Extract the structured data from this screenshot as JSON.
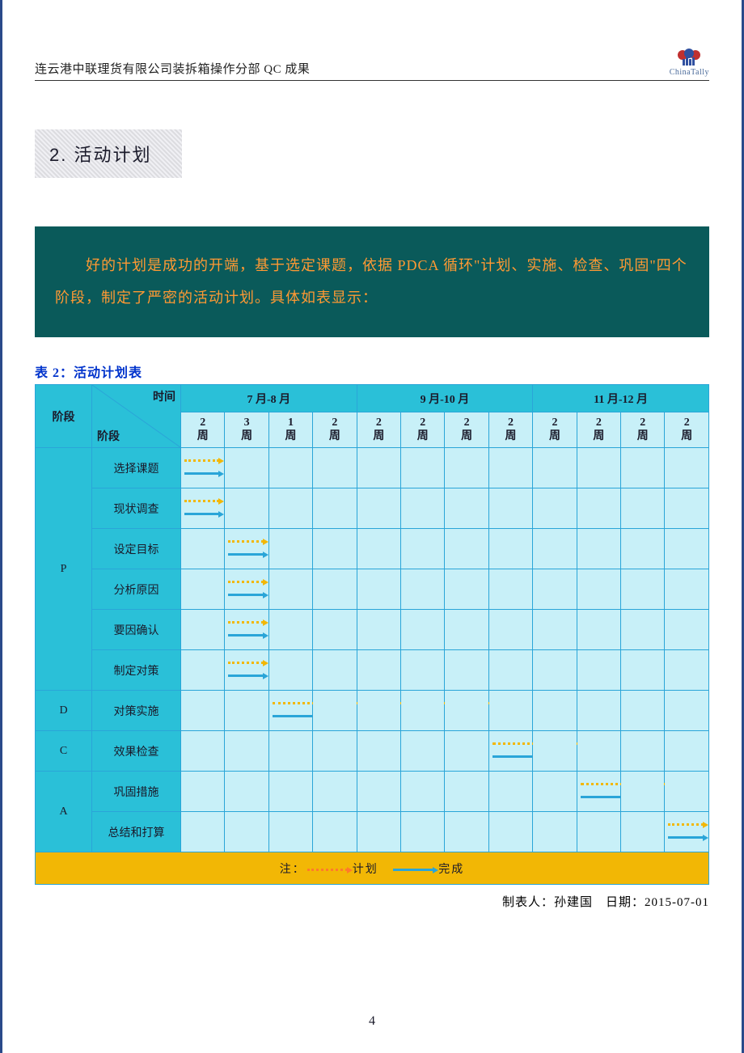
{
  "header": {
    "text": "连云港中联理货有限公司装拆箱操作分部 QC 成果",
    "logo_label": "ChinaTally"
  },
  "section_title": "2. 活动计划",
  "intro_box": "　　好的计划是成功的开端，基于选定课题，依据 PDCA 循环\"计划、实施、检查、巩固\"四个阶段，制定了严密的活动计划。具体如表显示：",
  "table_caption": "表 2：活动计划表",
  "colors": {
    "page_border": "#2a4a8a",
    "intro_bg": "#0a5a5a",
    "intro_text": "#ff9933",
    "header_bg": "#2ac0d8",
    "cell_bg": "#c8f0f8",
    "border": "#2aa5d8",
    "legend_bg": "#f2b705",
    "plan_arrow": "#f2b705",
    "done_arrow": "#2aa5d8"
  },
  "table": {
    "phase_header": "阶段",
    "diag_top": "时间",
    "diag_bottom": "阶段",
    "month_groups": [
      {
        "label": "7 月-8 月",
        "weeks": [
          "2 周",
          "3 周",
          "1 周",
          "2 周"
        ]
      },
      {
        "label": "9 月-10 月",
        "weeks": [
          "2 周",
          "2 周",
          "2 周",
          "2 周"
        ]
      },
      {
        "label": "11 月-12 月",
        "weeks": [
          "2 周",
          "2 周",
          "2 周",
          "2 周"
        ]
      }
    ],
    "week_count": 12,
    "phases": [
      {
        "code": "P",
        "rows": [
          {
            "activity": "选择课题",
            "plan": [
              0,
              0
            ],
            "done": [
              0,
              0
            ]
          },
          {
            "activity": "现状调查",
            "plan": [
              0,
              0
            ],
            "done": [
              0,
              0
            ]
          },
          {
            "activity": "设定目标",
            "plan": [
              1,
              1
            ],
            "done": [
              1,
              1
            ]
          },
          {
            "activity": "分析原因",
            "plan": [
              1,
              1
            ],
            "done": [
              1,
              1
            ]
          },
          {
            "activity": "要因确认",
            "plan": [
              1,
              1
            ],
            "done": [
              1,
              1
            ]
          },
          {
            "activity": "制定对策",
            "plan": [
              1,
              1
            ],
            "done": [
              1,
              1
            ]
          }
        ]
      },
      {
        "code": "D",
        "rows": [
          {
            "activity": "对策实施",
            "plan": [
              2,
              7
            ],
            "done": [
              2,
              7
            ]
          }
        ]
      },
      {
        "code": "C",
        "rows": [
          {
            "activity": "效果检查",
            "plan": [
              7,
              9
            ],
            "done": [
              7,
              9
            ]
          }
        ]
      },
      {
        "code": "A",
        "rows": [
          {
            "activity": "巩固措施",
            "plan": [
              9,
              11
            ],
            "done": [
              9,
              11
            ]
          },
          {
            "activity": "总结和打算",
            "plan": [
              11,
              11
            ],
            "done": [
              11,
              11
            ]
          }
        ]
      }
    ],
    "legend": {
      "prefix": "注：",
      "plan": "计划",
      "done": "完成"
    }
  },
  "footer_credit": "制表人：孙建国　日期：2015-07-01",
  "page_number": "4"
}
